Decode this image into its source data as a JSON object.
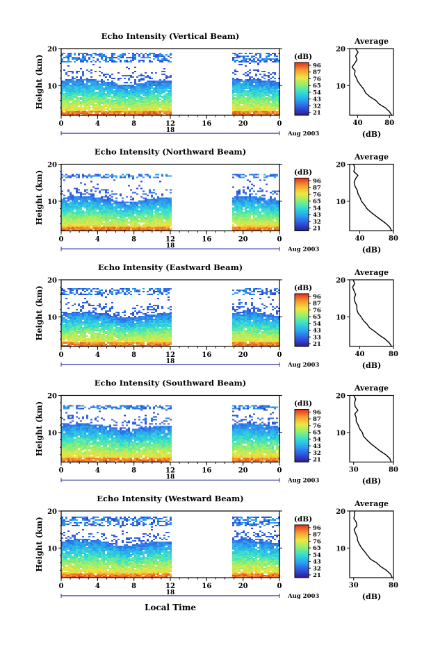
{
  "figure": {
    "date_label": "Aug 2003",
    "xlabel": "Local Time",
    "day_label": "18"
  },
  "chart_data": [
    {
      "type": "heatmap",
      "title": "Echo Intensity (Vertical Beam)",
      "ylabel": "Height (km)",
      "xlim": [
        0,
        24
      ],
      "ylim": [
        2,
        20
      ],
      "xticks": [
        "0",
        "4",
        "8",
        "12",
        "16",
        "20",
        "0"
      ],
      "yticks": [
        "10",
        "20"
      ],
      "data_gap": [
        12,
        18.8
      ],
      "echo_top_km": 11.5,
      "upper_layer_km": [
        16.5,
        19.0
      ],
      "colorbar": {
        "unit": "(dB)",
        "ticks": [
          "96",
          "87",
          "76",
          "65",
          "54",
          "43",
          "32",
          "21"
        ]
      },
      "average": {
        "title": "Average",
        "xlabel": "(dB)",
        "xticks": [
          "40",
          "80"
        ],
        "xlim": [
          30,
          85
        ],
        "yticks": [
          "10",
          "20"
        ],
        "profile": [
          [
            2,
            82
          ],
          [
            3,
            80
          ],
          [
            4,
            74
          ],
          [
            5,
            68
          ],
          [
            6,
            62
          ],
          [
            7,
            56
          ],
          [
            8,
            51
          ],
          [
            9,
            47
          ],
          [
            10,
            44
          ],
          [
            11,
            41
          ],
          [
            12,
            38
          ],
          [
            13,
            37
          ],
          [
            14,
            36
          ],
          [
            15,
            34
          ],
          [
            16,
            36
          ],
          [
            17,
            40
          ],
          [
            18,
            37
          ],
          [
            19,
            40
          ],
          [
            20,
            38
          ]
        ]
      }
    },
    {
      "type": "heatmap",
      "title": "Echo Intensity (Northward Beam)",
      "ylabel": "Height (km)",
      "xlim": [
        0,
        24
      ],
      "ylim": [
        2,
        20
      ],
      "xticks": [
        "0",
        "4",
        "8",
        "12",
        "16",
        "20",
        "0"
      ],
      "yticks": [
        "10",
        "20"
      ],
      "data_gap": [
        12,
        18.8
      ],
      "echo_top_km": 11.0,
      "upper_layer_km": [
        16.5,
        17.5
      ],
      "colorbar": {
        "unit": "(dB)",
        "ticks": [
          "96",
          "87",
          "76",
          "65",
          "54",
          "43",
          "32",
          "21"
        ]
      },
      "average": {
        "title": "Average",
        "xlabel": "(dB)",
        "xticks": [
          "40",
          "80"
        ],
        "xlim": [
          28,
          80
        ],
        "yticks": [
          "10",
          "20"
        ],
        "profile": [
          [
            2,
            78
          ],
          [
            3,
            76
          ],
          [
            4,
            70
          ],
          [
            5,
            65
          ],
          [
            6,
            59
          ],
          [
            7,
            53
          ],
          [
            8,
            49
          ],
          [
            9,
            45
          ],
          [
            10,
            42
          ],
          [
            11,
            40
          ],
          [
            12,
            37
          ],
          [
            13,
            36
          ],
          [
            14,
            35
          ],
          [
            15,
            33
          ],
          [
            16,
            34
          ],
          [
            17,
            37
          ],
          [
            18,
            33
          ],
          [
            19,
            34
          ],
          [
            20,
            33
          ]
        ]
      }
    },
    {
      "type": "heatmap",
      "title": "Echo Intensity (Eastward Beam)",
      "ylabel": "Height (km)",
      "xlim": [
        0,
        24
      ],
      "ylim": [
        2,
        20
      ],
      "xticks": [
        "0",
        "4",
        "8",
        "12",
        "16",
        "20",
        "0"
      ],
      "yticks": [
        "10",
        "20"
      ],
      "data_gap": [
        12,
        18.8
      ],
      "echo_top_km": 11.0,
      "upper_layer_km": [
        16.0,
        18.0
      ],
      "colorbar": {
        "unit": "(dB)",
        "ticks": [
          "96",
          "87",
          "76",
          "65",
          "54",
          "43",
          "33",
          "21"
        ]
      },
      "average": {
        "title": "Average",
        "xlabel": "(dB)",
        "xticks": [
          "40",
          "80"
        ],
        "xlim": [
          28,
          80
        ],
        "yticks": [
          "10",
          "20"
        ],
        "profile": [
          [
            2,
            78
          ],
          [
            3,
            75
          ],
          [
            4,
            70
          ],
          [
            5,
            64
          ],
          [
            6,
            58
          ],
          [
            7,
            52
          ],
          [
            8,
            48
          ],
          [
            9,
            44
          ],
          [
            10,
            41
          ],
          [
            11,
            39
          ],
          [
            12,
            37
          ],
          [
            13,
            36
          ],
          [
            14,
            34
          ],
          [
            15,
            33
          ],
          [
            16,
            35
          ],
          [
            17,
            33
          ],
          [
            18,
            32
          ],
          [
            19,
            33
          ],
          [
            20,
            32
          ]
        ]
      }
    },
    {
      "type": "heatmap",
      "title": "Echo Intensity (Southward Beam)",
      "ylabel": "Height (km)",
      "xlim": [
        0,
        24
      ],
      "ylim": [
        2,
        20
      ],
      "xticks": [
        "0",
        "4",
        "8",
        "12",
        "16",
        "20",
        "0"
      ],
      "yticks": [
        "10",
        "20"
      ],
      "data_gap": [
        12,
        18.8
      ],
      "echo_top_km": 12.0,
      "upper_layer_km": [
        16.5,
        17.5
      ],
      "colorbar": {
        "unit": "(dB)",
        "ticks": [
          "96",
          "87",
          "76",
          "65",
          "54",
          "43",
          "32",
          "21"
        ]
      },
      "average": {
        "title": "Average",
        "xlabel": "(dB)",
        "xticks": [
          "30",
          "80"
        ],
        "xlim": [
          25,
          80
        ],
        "yticks": [
          "10",
          "20"
        ],
        "profile": [
          [
            2,
            78
          ],
          [
            3,
            76
          ],
          [
            4,
            70
          ],
          [
            5,
            64
          ],
          [
            6,
            58
          ],
          [
            7,
            52
          ],
          [
            8,
            47
          ],
          [
            9,
            43
          ],
          [
            10,
            40
          ],
          [
            11,
            38
          ],
          [
            12,
            36
          ],
          [
            13,
            33
          ],
          [
            14,
            34
          ],
          [
            15,
            32
          ],
          [
            16,
            35
          ],
          [
            17,
            32
          ],
          [
            18,
            31
          ],
          [
            19,
            33
          ],
          [
            20,
            31
          ]
        ]
      }
    },
    {
      "type": "heatmap",
      "title": "Echo Intensity (Westward Beam)",
      "ylabel": "Height (km)",
      "xlim": [
        0,
        24
      ],
      "ylim": [
        2,
        20
      ],
      "xticks": [
        "0",
        "4",
        "8",
        "12",
        "16",
        "20",
        "0"
      ],
      "yticks": [
        "10",
        "20"
      ],
      "data_gap": [
        12,
        18.8
      ],
      "echo_top_km": 12.0,
      "upper_layer_km": [
        16.0,
        18.5
      ],
      "colorbar": {
        "unit": "(dB)",
        "ticks": [
          "96",
          "87",
          "76",
          "65",
          "54",
          "43",
          "32",
          "21"
        ]
      },
      "average": {
        "title": "Average",
        "xlabel": "(dB)",
        "xticks": [
          "30",
          "80"
        ],
        "xlim": [
          25,
          80
        ],
        "yticks": [
          "10",
          "20"
        ],
        "profile": [
          [
            2,
            79
          ],
          [
            3,
            77
          ],
          [
            4,
            71
          ],
          [
            5,
            64
          ],
          [
            6,
            58
          ],
          [
            7,
            52
          ],
          [
            8,
            47
          ],
          [
            9,
            44
          ],
          [
            10,
            41
          ],
          [
            11,
            38
          ],
          [
            12,
            36
          ],
          [
            13,
            34
          ],
          [
            14,
            33
          ],
          [
            15,
            31
          ],
          [
            16,
            34
          ],
          [
            17,
            33
          ],
          [
            18,
            30
          ],
          [
            19,
            32
          ],
          [
            20,
            31
          ]
        ]
      }
    }
  ]
}
